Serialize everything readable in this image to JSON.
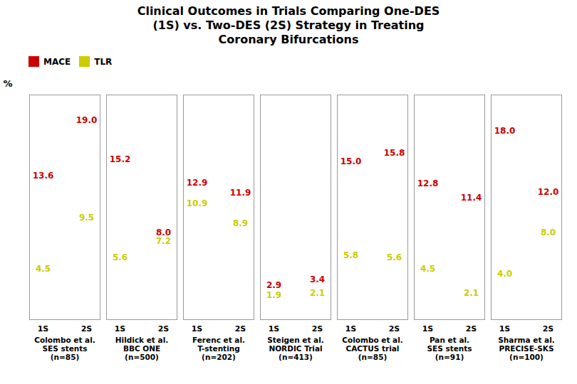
{
  "chart_data": {
    "type": "scatter",
    "title": [
      "Clinical Outcomes in Trials Comparing One-DES",
      "(1S) vs. Two-DES (2S) Strategy in Treating",
      "Coronary Bifurcations"
    ],
    "ylabel": "%",
    "groups": [
      [
        "Colombo et al.",
        "SES stents",
        "(n=85)"
      ],
      [
        "Hildick et al.",
        "BBC ONE",
        "(n=500)"
      ],
      [
        "Ferenc et al.",
        "T-stenting",
        "(n=202)"
      ],
      [
        "Steigen et al.",
        "NORDIC Trial",
        "(n=413)"
      ],
      [
        "Colombo et al.",
        "CACTUS trial",
        "(n=85)"
      ],
      [
        "Pan et al.",
        "SES stents",
        "(n=91)"
      ],
      [
        "Sharma et al.",
        "PRECISE-SKS",
        "(n=100)"
      ]
    ],
    "categories": [
      "1S",
      "2S"
    ],
    "series": [
      {
        "name": "MACE",
        "color": "#CC0000",
        "values": [
          [
            13.6,
            19.0
          ],
          [
            15.2,
            8.0
          ],
          [
            12.9,
            11.9
          ],
          [
            2.9,
            3.4
          ],
          [
            15.0,
            15.8
          ],
          [
            12.8,
            11.4
          ],
          [
            18.0,
            12.0
          ]
        ],
        "value_labels": [
          [
            "13.6",
            "19.0"
          ],
          [
            "15.2",
            "8.0"
          ],
          [
            "12.9",
            "11.9"
          ],
          [
            "2.9",
            "3.4"
          ],
          [
            "15.0",
            "15.8"
          ],
          [
            "12.8",
            "11.4"
          ],
          [
            "18.0",
            "12.0"
          ]
        ]
      },
      {
        "name": "TLR",
        "color": "#CCCC00",
        "values": [
          [
            4.5,
            9.5
          ],
          [
            5.6,
            7.2
          ],
          [
            10.9,
            8.9
          ],
          [
            1.9,
            2.1
          ],
          [
            5.8,
            5.6
          ],
          [
            4.5,
            2.1
          ],
          [
            4.0,
            8.0
          ]
        ],
        "value_labels": [
          [
            "4.5",
            "9.5"
          ],
          [
            "5.6",
            "7.2"
          ],
          [
            "10.9",
            "8.9"
          ],
          [
            "1.9",
            "2.1"
          ],
          [
            "5.8",
            "5.6"
          ],
          [
            "4.5",
            "2.1"
          ],
          [
            "4.0",
            "8.0"
          ]
        ]
      }
    ],
    "ylim": [
      -0.5,
      21.5
    ],
    "data_labels": true,
    "tick_labels": "x",
    "marker": "none",
    "legend": "top-left"
  }
}
